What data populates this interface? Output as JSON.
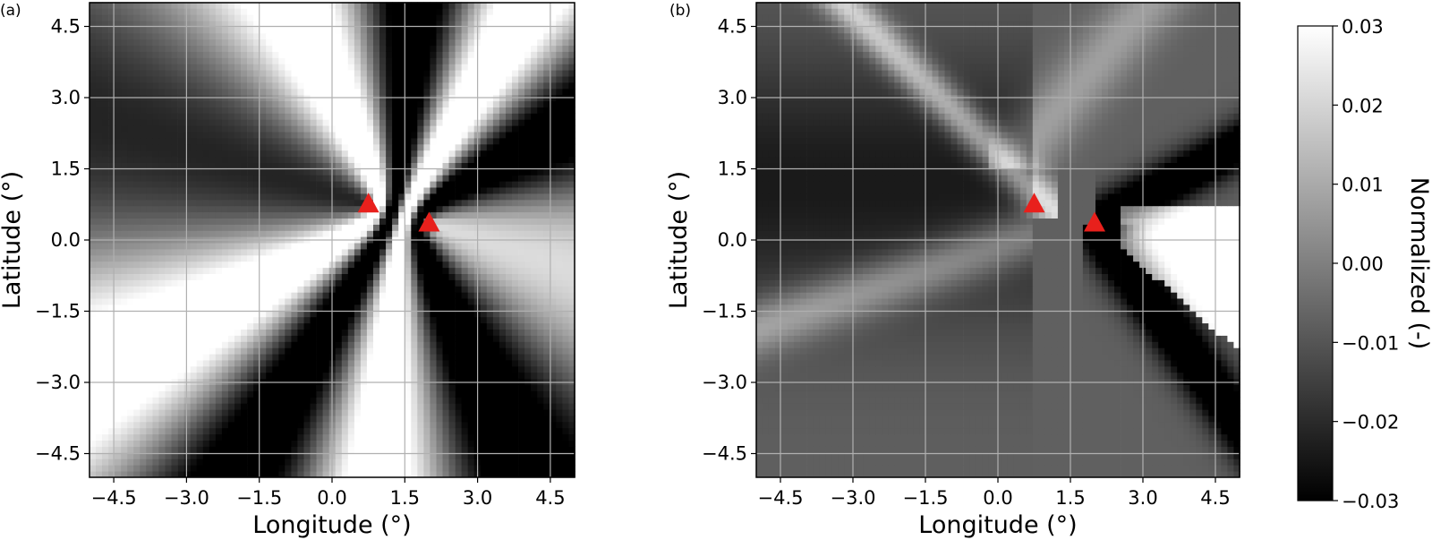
{
  "chart_data": [
    {
      "type": "heatmap",
      "panel_label": "(a)",
      "xlabel": "Longitude (°)",
      "ylabel": "Latitude (°)",
      "xlim": [
        -5.0,
        5.0
      ],
      "ylim": [
        -5.0,
        5.0
      ],
      "xticks": [
        -4.5,
        -3.0,
        -1.5,
        0.0,
        1.5,
        3.0,
        4.5
      ],
      "yticks": [
        -4.5,
        -3.0,
        -1.5,
        0.0,
        1.5,
        3.0,
        4.5
      ],
      "xtick_labels": [
        "−4.5",
        "−3.0",
        "−1.5",
        "0.0",
        "1.5",
        "3.0",
        "4.5"
      ],
      "ytick_labels": [
        "−4.5",
        "−3.0",
        "−1.5",
        "0.0",
        "1.5",
        "3.0",
        "4.5"
      ],
      "grid": true,
      "stations": [
        {
          "lon": 0.75,
          "lat": 0.75
        },
        {
          "lon": 2.0,
          "lat": 0.35
        }
      ],
      "station_color": "#e8201c",
      "pattern": "interference fringes radiating from the two stations, high-contrast black/white bands"
    },
    {
      "type": "heatmap",
      "panel_label": "(b)",
      "xlabel": "Longitude (°)",
      "ylabel": "Latitude (°)",
      "xlim": [
        -5.0,
        5.0
      ],
      "ylim": [
        -5.0,
        5.0
      ],
      "xticks": [
        -4.5,
        -3.0,
        -1.5,
        0.0,
        1.5,
        3.0,
        4.5
      ],
      "yticks": [
        -4.5,
        -3.0,
        -1.5,
        0.0,
        1.5,
        3.0,
        4.5
      ],
      "xtick_labels": [
        "−4.5",
        "−3.0",
        "−1.5",
        "0.0",
        "1.5",
        "3.0",
        "4.5"
      ],
      "ytick_labels": [
        "−4.5",
        "−3.0",
        "−1.5",
        "0.0",
        "1.5",
        "3.0",
        "4.5"
      ],
      "grid": true,
      "stations": [
        {
          "lon": 0.75,
          "lat": 0.75
        },
        {
          "lon": 2.0,
          "lat": 0.35
        }
      ],
      "station_color": "#e8201c",
      "pattern": "broad dark region on the left, dark arm toward lower right, white band right of the second station"
    }
  ],
  "colorbar": {
    "label": "Normalized (-)",
    "min": -0.03,
    "max": 0.03,
    "ticks": [
      0.03,
      0.02,
      0.01,
      0.0,
      -0.01,
      -0.02,
      -0.03
    ],
    "tick_labels": [
      "0.03",
      "0.02",
      "0.01",
      "0.00",
      "−0.01",
      "−0.02",
      "−0.03"
    ],
    "colormap": "gray"
  }
}
